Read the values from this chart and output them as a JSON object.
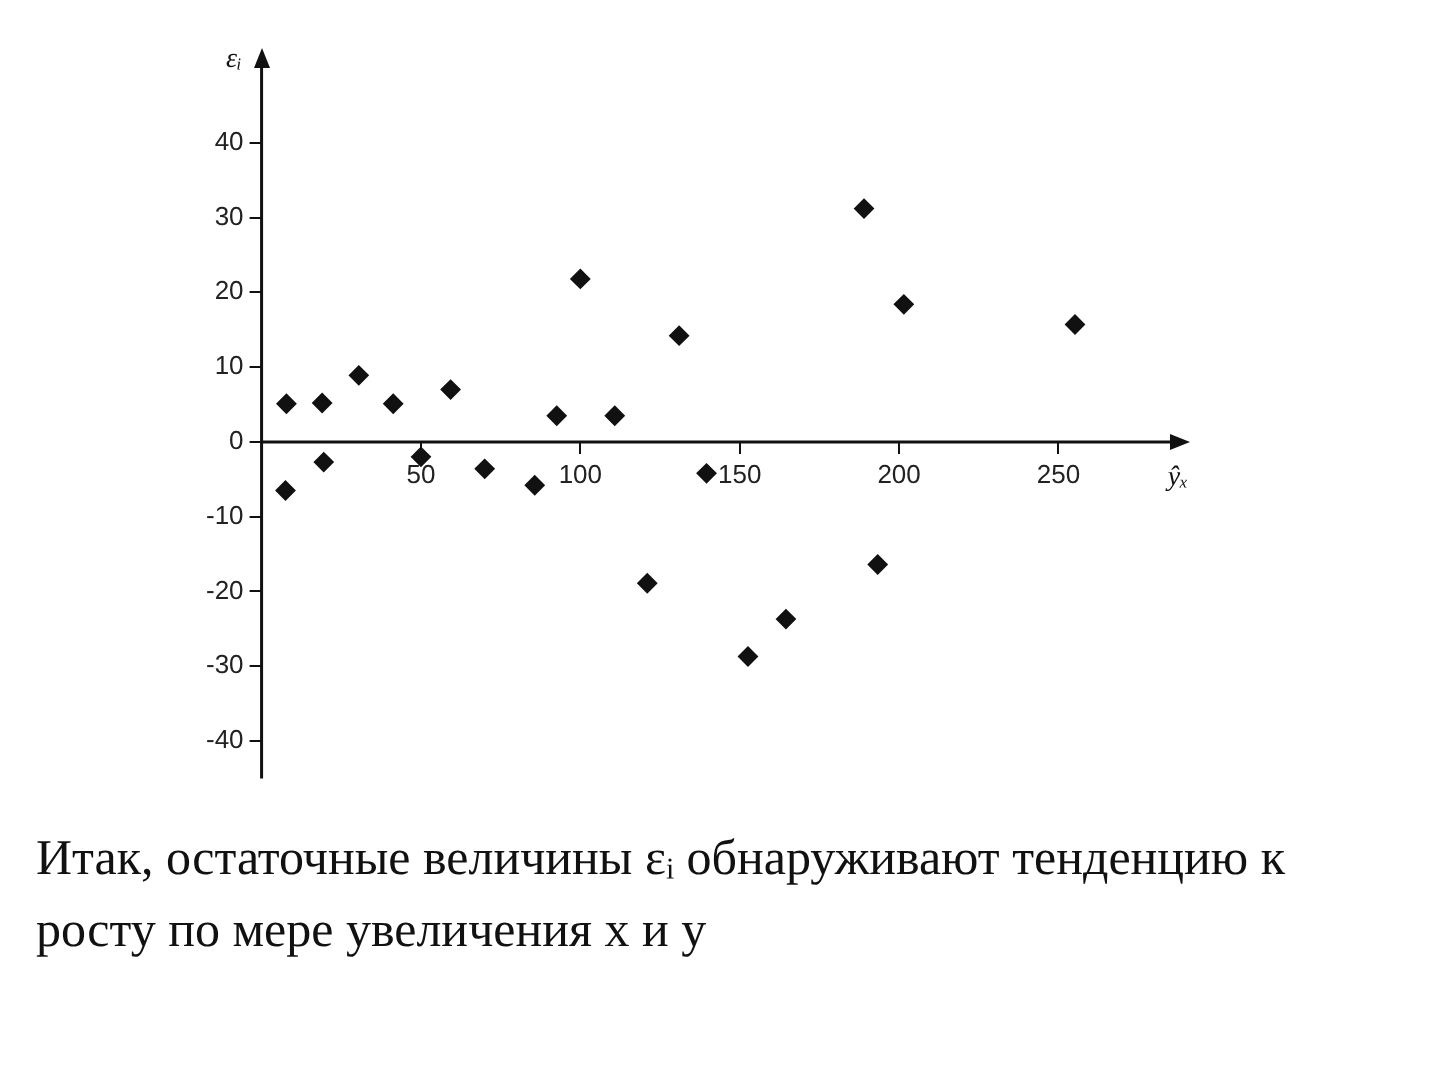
{
  "chart_data": {
    "type": "scatter",
    "xlabel": "ŷₓ",
    "ylabel": "εᵢ",
    "x": [
      7.8,
      7.5,
      19,
      19.5,
      30.5,
      41.3,
      50,
      59.3,
      70,
      85.7,
      92.6,
      100,
      110.8,
      121,
      131,
      139.6,
      152.6,
      164.5,
      189,
      193.3,
      201.5,
      255.2
    ],
    "series": [
      {
        "color": "#111111",
        "values": [
          5.1,
          -6.5,
          5.2,
          -2.7,
          8.9,
          5.1,
          -2.0,
          7.0,
          -3.6,
          -5.8,
          3.5,
          21.8,
          3.5,
          -18.9,
          14.2,
          -4.2,
          -28.7,
          -23.7,
          31.2,
          -16.4,
          18.4,
          15.7
        ]
      }
    ],
    "xlim": [
      0,
      285
    ],
    "ylim": [
      -45,
      50
    ],
    "xticks": [
      50,
      100,
      150,
      200,
      250
    ],
    "yticks": [
      -40,
      -30,
      -20,
      -10,
      0,
      10,
      20,
      30,
      40
    ],
    "grid": false,
    "legend": false,
    "marker": "diamond",
    "annotations": [
      "Итак, остаточные величины εᵢ обнаруживают тенденцию к росту по мере увеличения x и y"
    ]
  }
}
